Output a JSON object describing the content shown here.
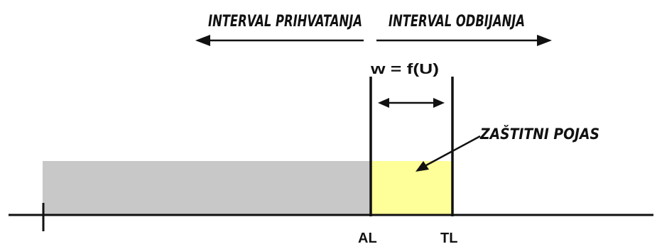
{
  "labels": {
    "acceptance_interval": "INTERVAL PRIHVATANJA",
    "rejection_interval": "INTERVAL ODBIJANJA",
    "guard_band_width": "w = f(U)",
    "guard_band": "ZAŠTITNI POJAS",
    "acceptance_limit": "AL",
    "tolerance_limit": "TL"
  },
  "colors": {
    "acceptance_region": "#c8c8c8",
    "guard_band_region": "#ffff99",
    "ink": "#111111"
  }
}
